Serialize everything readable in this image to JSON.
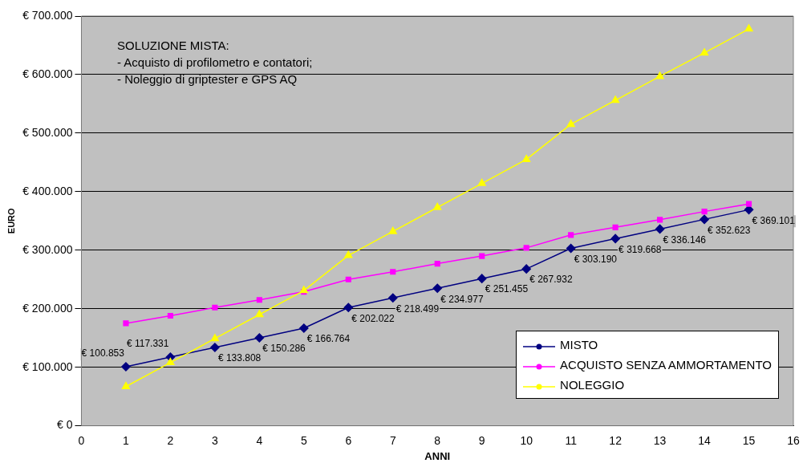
{
  "chart_data": {
    "type": "line",
    "xlabel": "ANNI",
    "ylabel": "EURO",
    "x": [
      1,
      2,
      3,
      4,
      5,
      6,
      7,
      8,
      9,
      10,
      11,
      12,
      13,
      14,
      15
    ],
    "series": [
      {
        "name": "MISTO",
        "color": "#000080",
        "marker": "diamond",
        "values": [
          100853,
          117331,
          133808,
          150286,
          166764,
          202022,
          218499,
          234977,
          251455,
          267932,
          303190,
          319668,
          336146,
          352623,
          369101
        ],
        "value_labels": [
          "€ 100.853",
          "€ 117.331",
          "€ 133.808",
          "€ 150.286",
          "€ 166.764",
          "€ 202.022",
          "€ 218.499",
          "€ 234.977",
          "€ 251.455",
          "€ 267.932",
          "€ 303.190",
          "€ 319.668",
          "€ 336.146",
          "€ 352.623",
          "€ 369.101"
        ]
      },
      {
        "name": "ACQUISTO SENZA AMMORTAMENTO",
        "color": "#ff00ff",
        "marker": "square",
        "values": [
          175000,
          188000,
          202000,
          215000,
          229000,
          250000,
          263000,
          277000,
          290000,
          304000,
          326000,
          339000,
          352000,
          366000,
          379000
        ]
      },
      {
        "name": "NOLEGGIO",
        "color": "#ffff00",
        "marker": "triangle",
        "values": [
          67000,
          108000,
          149000,
          190000,
          231000,
          291000,
          332000,
          373000,
          414000,
          455000,
          515000,
          556000,
          597000,
          637000,
          678000
        ]
      }
    ],
    "xlim": [
      0,
      16
    ],
    "xticks": [
      0,
      1,
      2,
      3,
      4,
      5,
      6,
      7,
      8,
      9,
      10,
      11,
      12,
      13,
      14,
      15,
      16
    ],
    "ylim": [
      0,
      700000
    ],
    "yticks": [
      {
        "value": 0,
        "label": "€ 0"
      },
      {
        "value": 100000,
        "label": "€ 100.000"
      },
      {
        "value": 200000,
        "label": "€ 200.000"
      },
      {
        "value": 300000,
        "label": "€ 300.000"
      },
      {
        "value": 400000,
        "label": "€ 400.000"
      },
      {
        "value": 500000,
        "label": "€ 500.000"
      },
      {
        "value": 600000,
        "label": "€ 600.000"
      },
      {
        "value": 700000,
        "label": "€ 700.000"
      }
    ],
    "grid": "y",
    "legend": "bottom right",
    "annotations": [
      "SOLUZIONE MISTA:",
      "- Acquisto di profilometro e contatori;",
      "- Noleggio di griptester e GPS AQ"
    ]
  }
}
